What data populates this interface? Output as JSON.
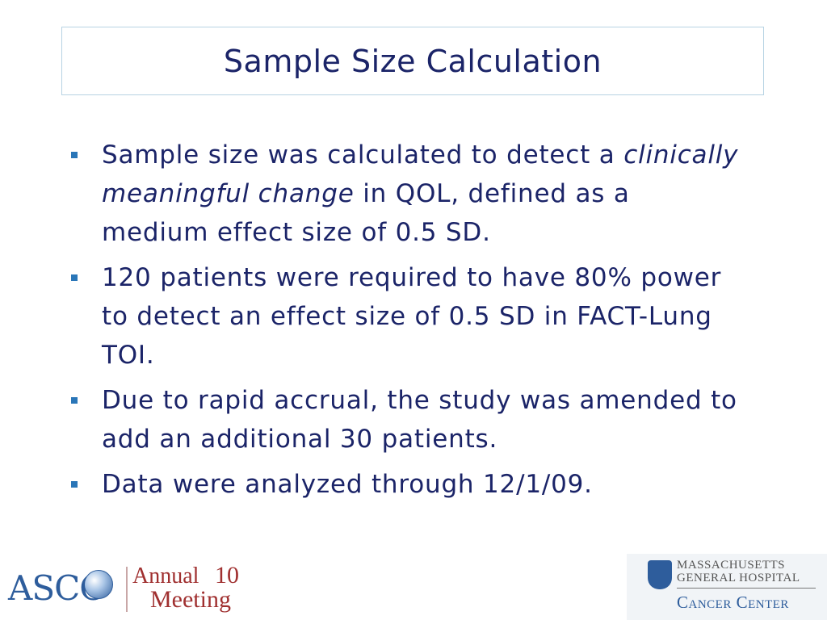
{
  "slide": {
    "title": "Sample Size Calculation",
    "bullets": [
      {
        "pre": "Sample size was calculated to detect a ",
        "em": "clinically meaningful change",
        "post": " in QOL, defined as a medium effect size of 0.5 SD."
      },
      {
        "text": "120 patients were required to have 80% power to detect an effect size of 0.5 SD in FACT-Lung TOI."
      },
      {
        "text": "Due to rapid accrual, the study was amended to add an additional 30 patients."
      },
      {
        "text": "Data were analyzed through 12/1/09."
      }
    ]
  },
  "footer": {
    "asco": {
      "name": "ASCO",
      "annual": "Annual",
      "year": "10",
      "meeting": "Meeting"
    },
    "mgh": {
      "line1": "MASSACHUSETTS",
      "line2": "GENERAL HOSPITAL",
      "center": "Cancer Center"
    }
  },
  "colors": {
    "title": "#1b2468",
    "body": "#1b2468",
    "bullet_marker": "#2a76b8",
    "title_border": "#b7d3e3"
  }
}
